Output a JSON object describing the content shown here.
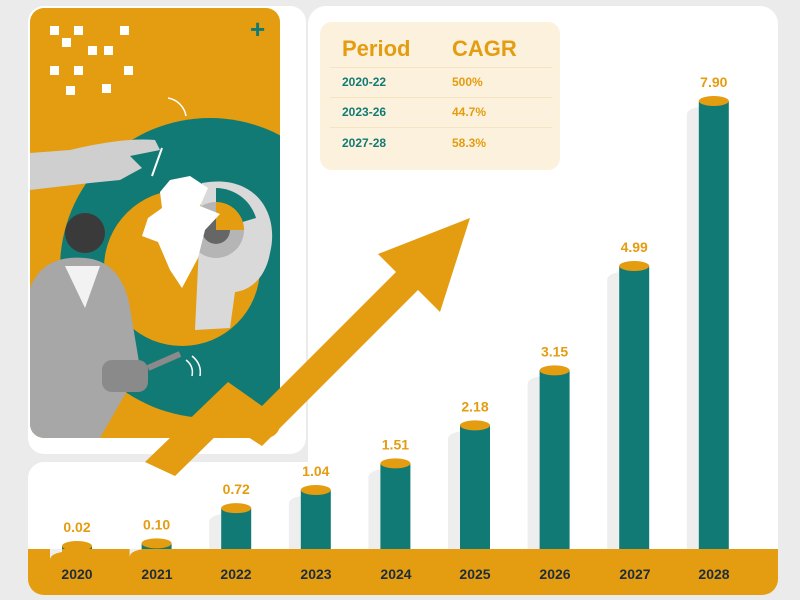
{
  "colors": {
    "orange": "#e49c10",
    "teal": "#117a74",
    "tealLight": "#1a9690",
    "navy": "#1f2d3a"
  },
  "cagr_table": {
    "headers": [
      "Period",
      "CAGR"
    ],
    "rows": [
      {
        "period": "2020-22",
        "cagr": "500%"
      },
      {
        "period": "2023-26",
        "cagr": "44.7%"
      },
      {
        "period": "2027-28",
        "cagr": "58.3%"
      }
    ]
  },
  "chart_data": {
    "type": "bar",
    "categories": [
      "2020",
      "2021",
      "2022",
      "2023",
      "2024",
      "2025",
      "2026",
      "2027",
      "2028"
    ],
    "values": [
      0.02,
      0.1,
      0.72,
      1.04,
      1.51,
      2.18,
      3.15,
      4.99,
      7.9
    ],
    "value_labels": [
      "0.02",
      "0.10",
      "0.72",
      "1.04",
      "1.51",
      "2.18",
      "3.15",
      "4.99",
      "7.90"
    ],
    "ylim": [
      0,
      8
    ],
    "grid": false,
    "legend": "none"
  },
  "icons": [
    "plus-icon",
    "hand-icon",
    "india-map-icon",
    "robot-head-icon",
    "man-with-watering-can-icon",
    "trend-arrow-icon"
  ]
}
